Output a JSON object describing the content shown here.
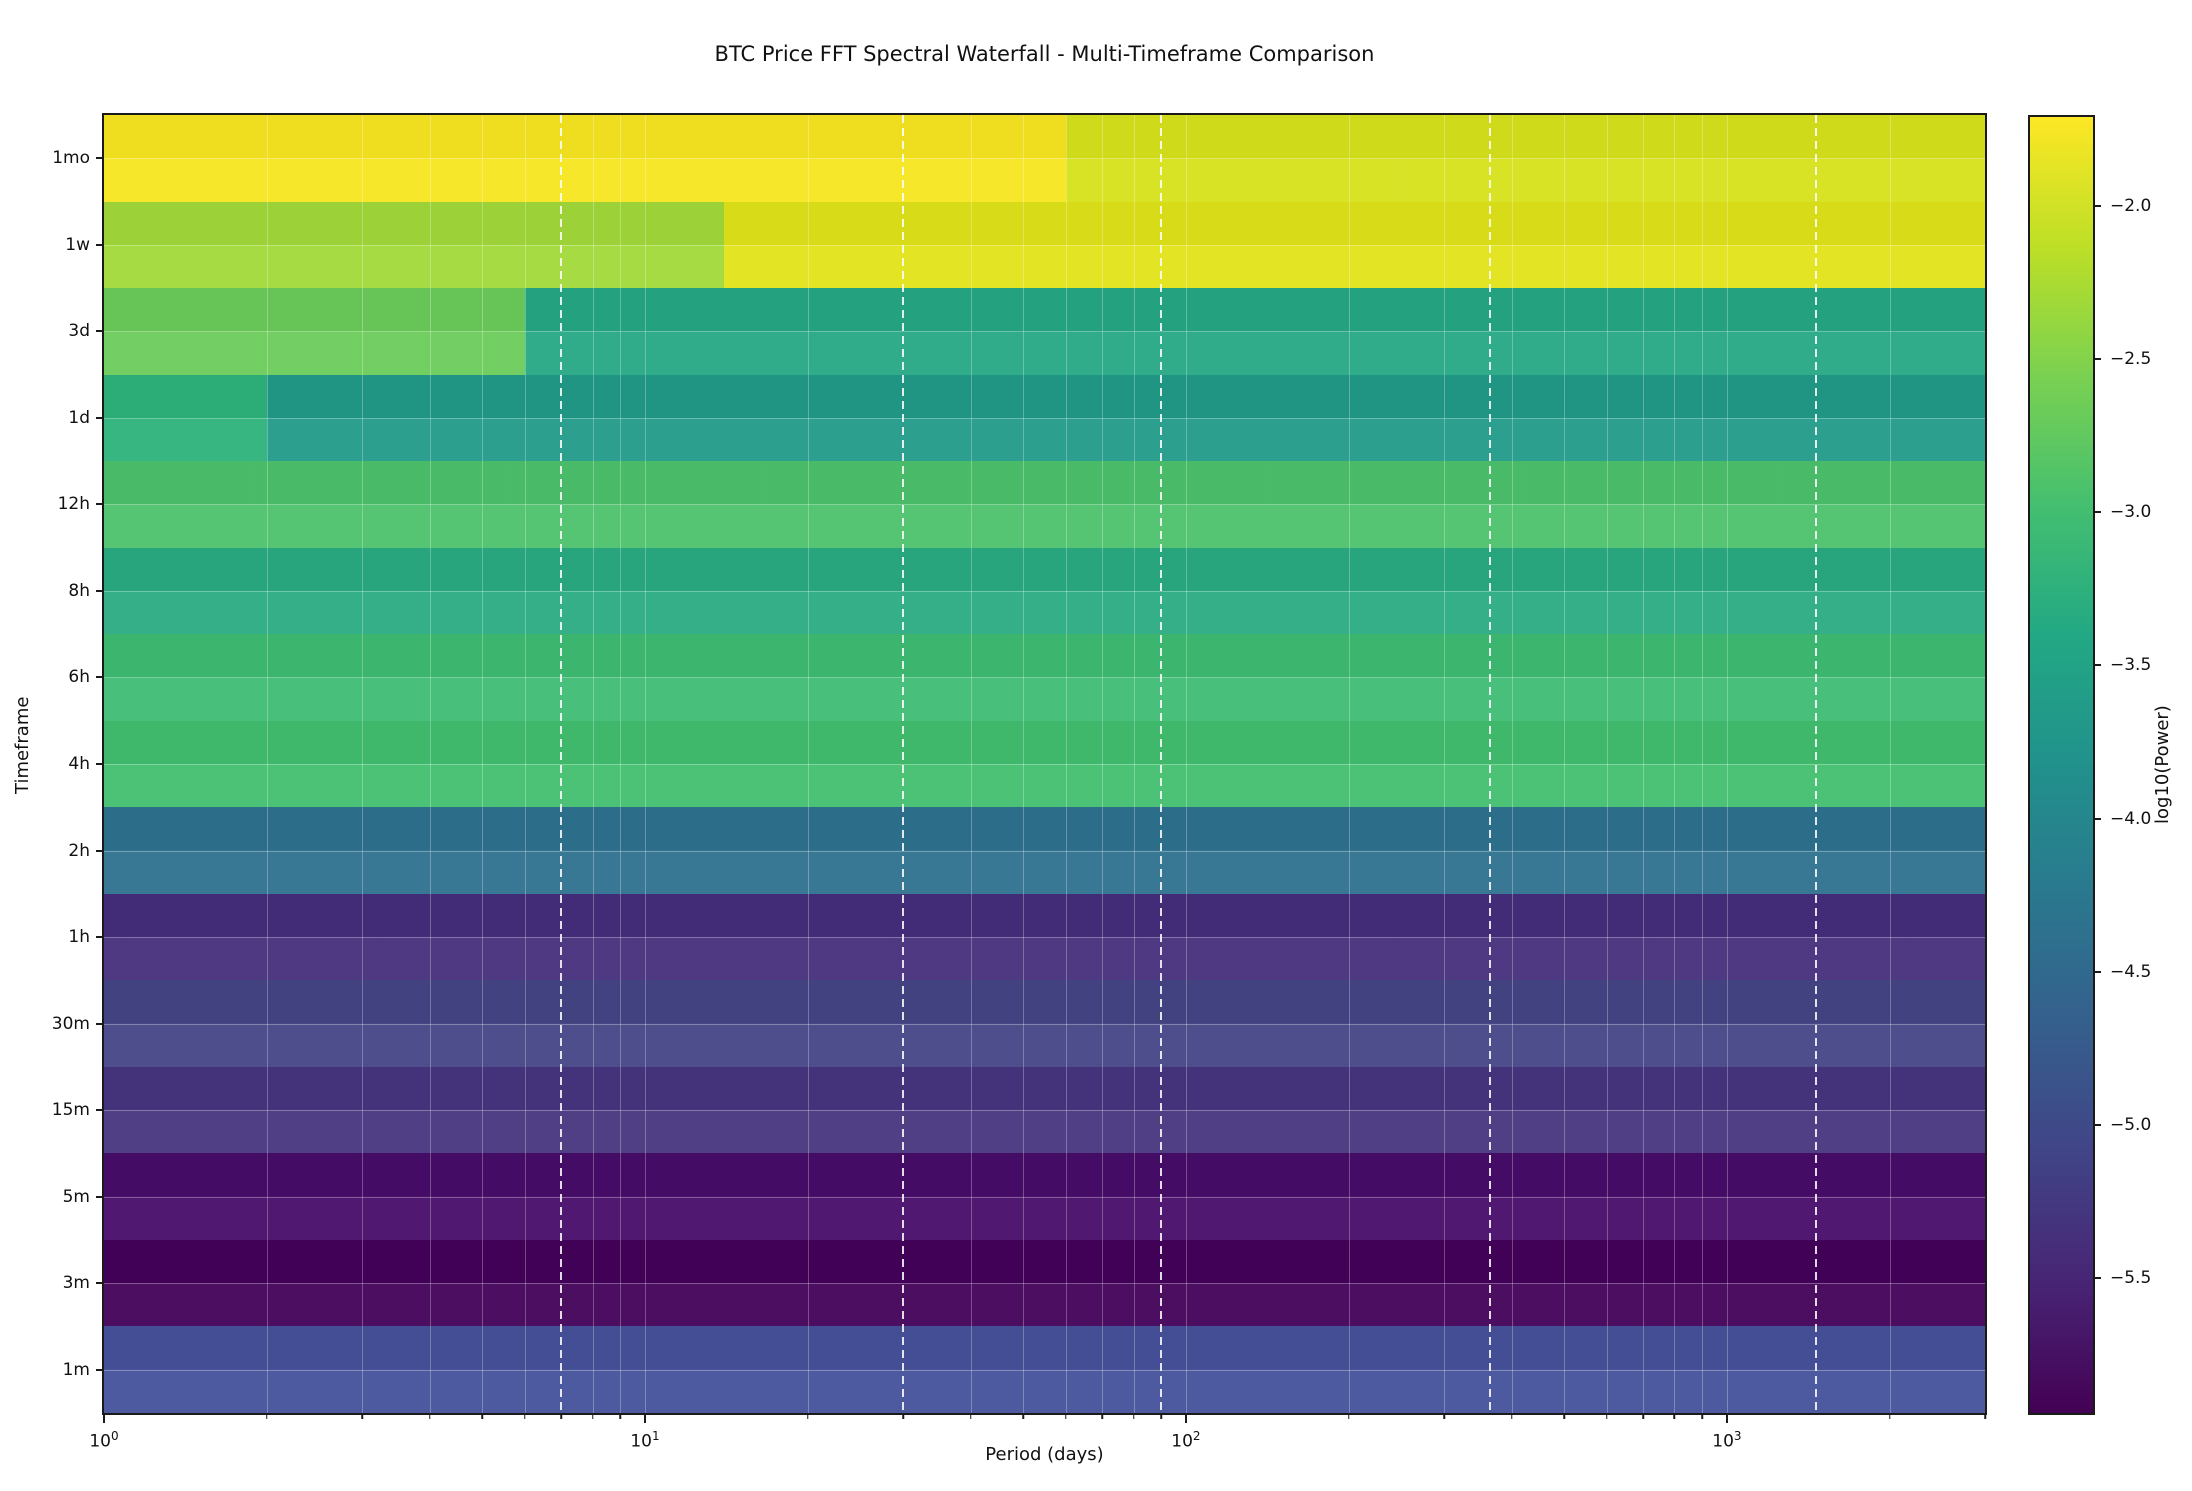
{
  "chart_data": {
    "type": "heatmap",
    "title": "BTC Price FFT Spectral Waterfall - Multi-Timeframe Comparison",
    "xlabel": "Period (days)",
    "ylabel": "Timeframe",
    "colorbar_label": "log10(Power)",
    "x_axis": {
      "scale": "log10",
      "range_days": [
        1,
        3000
      ],
      "major_ticks": [
        1,
        10,
        100,
        1000
      ],
      "major_tick_exponents": [
        0,
        1,
        2,
        3
      ],
      "minor_ticks": [
        2,
        3,
        4,
        5,
        6,
        7,
        8,
        9,
        20,
        30,
        40,
        50,
        60,
        70,
        80,
        90,
        200,
        300,
        400,
        500,
        600,
        700,
        800,
        900,
        2000,
        3000
      ],
      "minor_gridlines": [
        2,
        3,
        4,
        5,
        6,
        8,
        9,
        10,
        20,
        40,
        50,
        60,
        70,
        80,
        100,
        200,
        300,
        400,
        500,
        600,
        700,
        800,
        900,
        1000,
        2000
      ],
      "dashed_gridlines": [
        7,
        30,
        90,
        365,
        1461
      ]
    },
    "colorbar": {
      "vmin": -5.94,
      "vmax": -1.71,
      "ticks": [
        -2.0,
        -2.5,
        -3.0,
        -3.5,
        -4.0,
        -4.5,
        -5.0,
        -5.5
      ],
      "tick_labels": [
        "−2.0",
        "−2.5",
        "−3.0",
        "−3.5",
        "−4.0",
        "−4.5",
        "−5.0",
        "−5.5"
      ],
      "colormap": "viridis",
      "stops_top_to_bottom": [
        "#fde725",
        "#bddf26",
        "#7ad151",
        "#44bf70",
        "#22a884",
        "#21918c",
        "#2a788e",
        "#355f8d",
        "#414487",
        "#482475",
        "#440154"
      ]
    },
    "rows": [
      {
        "label": "1mo",
        "segments": [
          {
            "from_days": 1,
            "to_days": 60,
            "log10_power": -1.8,
            "color": "#f7e620"
          },
          {
            "from_days": 60,
            "to_days": 3000,
            "log10_power": -2.0,
            "color": "#d6e21b"
          }
        ]
      },
      {
        "label": "1w",
        "segments": [
          {
            "from_days": 1,
            "to_days": 14,
            "log10_power": -2.4,
            "color": "#a2d939"
          },
          {
            "from_days": 14,
            "to_days": 3000,
            "log10_power": -1.95,
            "color": "#e0e318"
          }
        ]
      },
      {
        "label": "3d",
        "segments": [
          {
            "from_days": 1,
            "to_days": 6,
            "log10_power": -2.7,
            "color": "#6bcc5a"
          },
          {
            "from_days": 6,
            "to_days": 3000,
            "log10_power": -3.4,
            "color": "#25a885"
          }
        ]
      },
      {
        "label": "1d",
        "segments": [
          {
            "from_days": 1,
            "to_days": 2,
            "log10_power": -3.15,
            "color": "#2db27b"
          },
          {
            "from_days": 2,
            "to_days": 3000,
            "log10_power": -3.6,
            "color": "#219a89"
          }
        ]
      },
      {
        "label": "12h",
        "segments": [
          {
            "from_days": 1,
            "to_days": 3000,
            "log10_power": -2.9,
            "color": "#4cc26c"
          }
        ]
      },
      {
        "label": "8h",
        "segments": [
          {
            "from_days": 1,
            "to_days": 3000,
            "log10_power": -3.25,
            "color": "#29ab81"
          }
        ]
      },
      {
        "label": "6h",
        "segments": [
          {
            "from_days": 1,
            "to_days": 3000,
            "log10_power": -3.0,
            "color": "#3ebc73"
          }
        ]
      },
      {
        "label": "4h",
        "segments": [
          {
            "from_days": 1,
            "to_days": 3000,
            "log10_power": -2.95,
            "color": "#42bf70"
          }
        ]
      },
      {
        "label": "2h",
        "segments": [
          {
            "from_days": 1,
            "to_days": 3000,
            "log10_power": -4.4,
            "color": "#2e718e"
          }
        ]
      },
      {
        "label": "1h",
        "segments": [
          {
            "from_days": 1,
            "to_days": 3000,
            "log10_power": -5.45,
            "color": "#452e7b"
          }
        ]
      },
      {
        "label": "30m",
        "segments": [
          {
            "from_days": 1,
            "to_days": 3000,
            "log10_power": -5.2,
            "color": "#454486"
          }
        ]
      },
      {
        "label": "15m",
        "segments": [
          {
            "from_days": 1,
            "to_days": 3000,
            "log10_power": -5.4,
            "color": "#47357e"
          }
        ]
      },
      {
        "label": "5m",
        "segments": [
          {
            "from_days": 1,
            "to_days": 3000,
            "log10_power": -5.75,
            "color": "#470c69"
          }
        ]
      },
      {
        "label": "3m",
        "segments": [
          {
            "from_days": 1,
            "to_days": 3000,
            "log10_power": -5.9,
            "color": "#420159"
          }
        ]
      },
      {
        "label": "1m",
        "segments": [
          {
            "from_days": 1,
            "to_days": 3000,
            "log10_power": -5.0,
            "color": "#45519a"
          }
        ]
      }
    ]
  }
}
